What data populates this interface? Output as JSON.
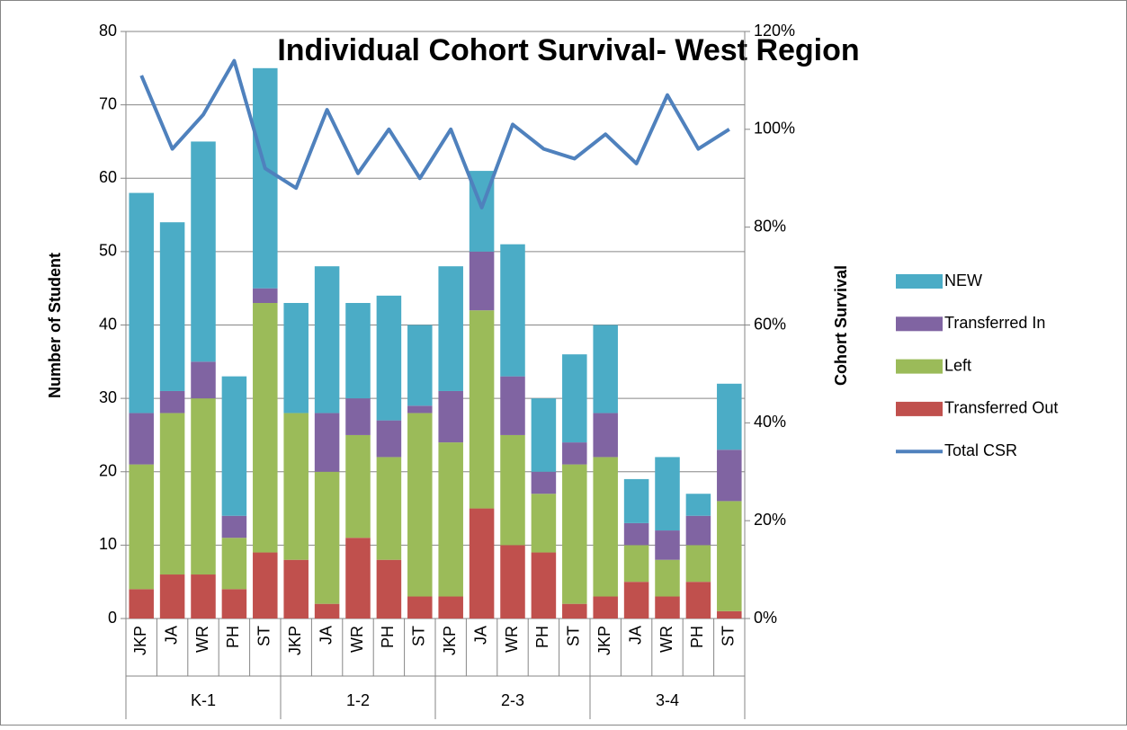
{
  "chart_data": {
    "type": "bar",
    "stacked": true,
    "title": "Individual Cohort Survival- West Region",
    "y_label": "Number of Student",
    "y2_label": "Cohort Survival",
    "categories": [
      "JKP",
      "JA",
      "WR",
      "PH",
      "ST",
      "JKP",
      "JA",
      "WR",
      "PH",
      "ST",
      "JKP",
      "JA",
      "WR",
      "PH",
      "ST",
      "JKP",
      "JA",
      "WR",
      "PH",
      "ST"
    ],
    "category_groups": [
      "K-1",
      "1-2",
      "2-3",
      "3-4"
    ],
    "ylim": [
      0,
      80
    ],
    "yticks": [
      0,
      10,
      20,
      30,
      40,
      50,
      60,
      70,
      80
    ],
    "y2lim": [
      0,
      120
    ],
    "y2ticks": [
      {
        "value": 0,
        "label": "0%"
      },
      {
        "value": 20,
        "label": "20%"
      },
      {
        "value": 40,
        "label": "40%"
      },
      {
        "value": 60,
        "label": "60%"
      },
      {
        "value": 80,
        "label": "80%"
      },
      {
        "value": 100,
        "label": "100%"
      },
      {
        "value": 120,
        "label": "120%"
      }
    ],
    "grid": true,
    "legend": "right",
    "series": [
      {
        "name": "Transferred Out",
        "color": "#c0504d",
        "values": [
          4,
          6,
          6,
          4,
          9,
          8,
          2,
          11,
          8,
          3,
          3,
          15,
          10,
          9,
          2,
          3,
          5,
          3,
          5,
          1
        ]
      },
      {
        "name": "Left",
        "color": "#9bbb59",
        "values": [
          17,
          22,
          24,
          7,
          34,
          20,
          18,
          14,
          14,
          25,
          21,
          27,
          15,
          8,
          19,
          19,
          5,
          5,
          5,
          15
        ]
      },
      {
        "name": "Transferred In",
        "color": "#8064a2",
        "values": [
          7,
          3,
          5,
          3,
          2,
          0,
          8,
          5,
          5,
          1,
          7,
          8,
          8,
          3,
          3,
          6,
          3,
          4,
          4,
          7
        ]
      },
      {
        "name": "NEW",
        "color": "#4bacc6",
        "values": [
          30,
          23,
          30,
          19,
          30,
          15,
          20,
          13,
          17,
          11,
          17,
          11,
          18,
          10,
          12,
          12,
          6,
          10,
          3,
          9
        ]
      },
      {
        "name": "Total CSR",
        "type": "line",
        "axis": "y2",
        "color": "#4f81bd",
        "values": [
          111,
          96,
          103,
          114,
          92,
          88,
          104,
          91,
          100,
          90,
          100,
          84,
          101,
          96,
          94,
          99,
          93,
          107,
          96,
          100
        ]
      }
    ]
  }
}
